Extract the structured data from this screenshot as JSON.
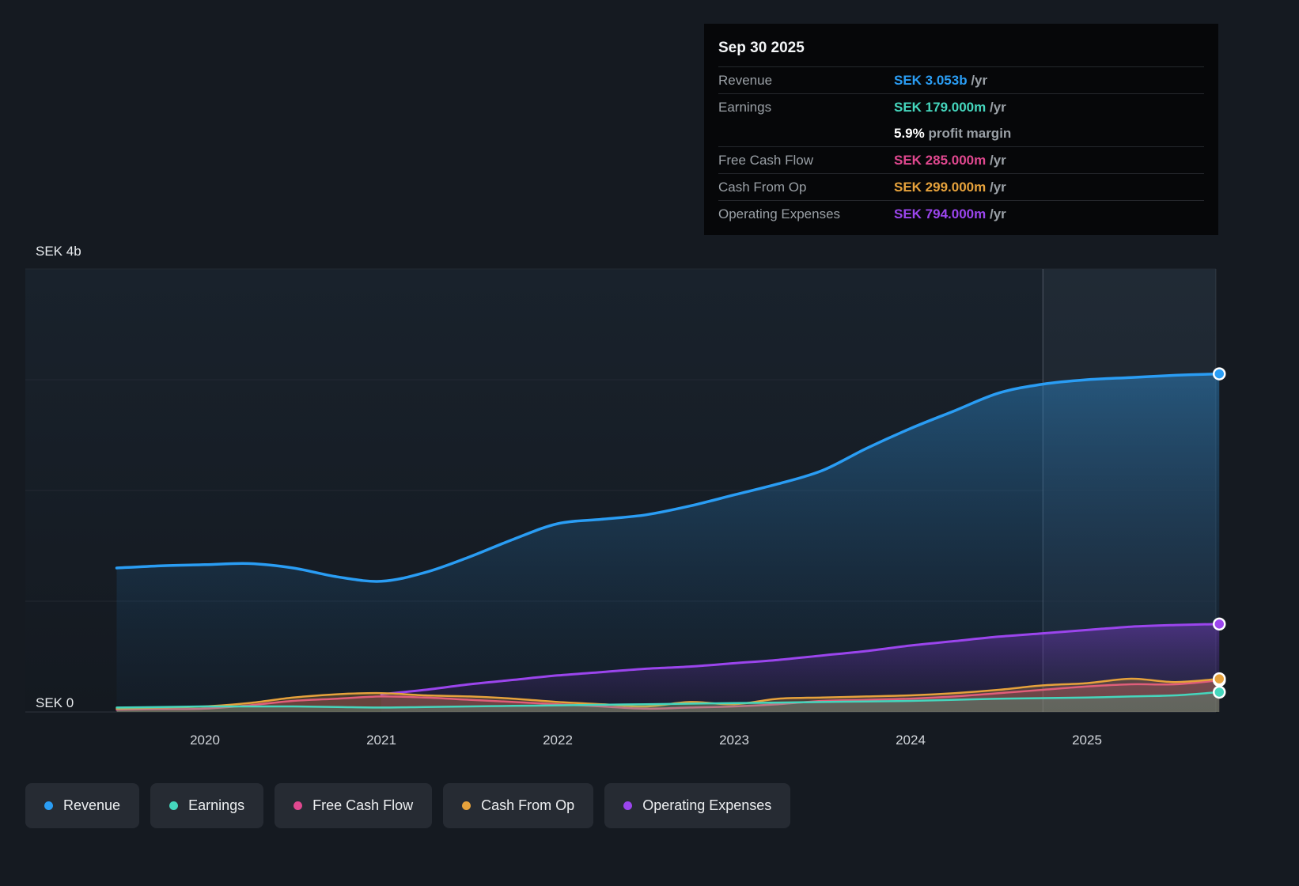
{
  "tooltip": {
    "date": "Sep 30 2025",
    "rows": [
      {
        "label": "Revenue",
        "value": "SEK 3.053b",
        "suffix": "/yr",
        "color": "#2a9df4"
      },
      {
        "label": "Earnings",
        "value": "SEK 179.000m",
        "suffix": "/yr",
        "color": "#45d6bd",
        "sub_value": "5.9%",
        "sub_text": "profit margin"
      },
      {
        "label": "Free Cash Flow",
        "value": "SEK 285.000m",
        "suffix": "/yr",
        "color": "#e0488f"
      },
      {
        "label": "Cash From Op",
        "value": "SEK 299.000m",
        "suffix": "/yr",
        "color": "#e6a23c"
      },
      {
        "label": "Operating Expenses",
        "value": "SEK 794.000m",
        "suffix": "/yr",
        "color": "#9b45ed"
      }
    ]
  },
  "axis": {
    "y_top": "SEK 4b",
    "y_bottom": "SEK 0"
  },
  "legend": [
    {
      "label": "Revenue",
      "color": "#2a9df4"
    },
    {
      "label": "Earnings",
      "color": "#45d6bd"
    },
    {
      "label": "Free Cash Flow",
      "color": "#e0488f"
    },
    {
      "label": "Cash From Op",
      "color": "#e6a23c"
    },
    {
      "label": "Operating Expenses",
      "color": "#9b45ed"
    }
  ],
  "chart_data": {
    "type": "line",
    "title": "Company financials over time (SEK billions)",
    "y_axis": {
      "min": 0,
      "max": 4,
      "unit": "SEK billions",
      "top_label": "SEK 4b",
      "bottom_label": "SEK 0"
    },
    "x_ticks": [
      "2020",
      "2021",
      "2022",
      "2023",
      "2024",
      "2025"
    ],
    "highlight_band_start": 2024.75,
    "x": [
      2019.5,
      2019.75,
      2020,
      2020.25,
      2020.5,
      2020.75,
      2021,
      2021.25,
      2021.5,
      2021.75,
      2022,
      2022.25,
      2022.5,
      2022.75,
      2023,
      2023.25,
      2023.5,
      2023.75,
      2024,
      2024.25,
      2024.5,
      2024.75,
      2025,
      2025.25,
      2025.5,
      2025.75
    ],
    "series": [
      {
        "name": "Revenue",
        "color": "#2a9df4",
        "width": 3.5,
        "fill_top": "rgba(47,143,214,0.45)",
        "fill_bottom": "rgba(21,58,92,0.10)",
        "values": [
          1.3,
          1.32,
          1.33,
          1.34,
          1.3,
          1.22,
          1.18,
          1.26,
          1.4,
          1.56,
          1.7,
          1.74,
          1.78,
          1.86,
          1.96,
          2.06,
          2.18,
          2.38,
          2.56,
          2.72,
          2.88,
          2.96,
          3.0,
          3.02,
          3.04,
          3.053
        ]
      },
      {
        "name": "Operating Expenses",
        "color": "#9b45ed",
        "width": 3,
        "fill_top": "rgba(140,60,224,0.40)",
        "fill_bottom": "rgba(80,35,130,0.10)",
        "values": [
          null,
          null,
          null,
          null,
          null,
          null,
          0.16,
          0.2,
          0.25,
          0.29,
          0.33,
          0.36,
          0.39,
          0.41,
          0.44,
          0.47,
          0.51,
          0.55,
          0.6,
          0.64,
          0.68,
          0.71,
          0.74,
          0.77,
          0.785,
          0.794
        ]
      },
      {
        "name": "Free Cash Flow",
        "color": "#e0488f",
        "width": 2.5,
        "fill": "rgba(220,70,140,0.22)",
        "values": [
          0.02,
          0.025,
          0.03,
          0.06,
          0.1,
          0.12,
          0.14,
          0.13,
          0.11,
          0.09,
          0.07,
          0.05,
          0.03,
          0.04,
          0.05,
          0.07,
          0.1,
          0.11,
          0.12,
          0.14,
          0.17,
          0.2,
          0.23,
          0.25,
          0.25,
          0.285
        ]
      },
      {
        "name": "Cash From Op",
        "color": "#e6a23c",
        "width": 2.5,
        "fill": "rgba(225,160,60,0.25)",
        "values": [
          0.03,
          0.04,
          0.05,
          0.08,
          0.13,
          0.16,
          0.17,
          0.15,
          0.14,
          0.12,
          0.09,
          0.07,
          0.05,
          0.09,
          0.07,
          0.12,
          0.13,
          0.14,
          0.15,
          0.17,
          0.2,
          0.24,
          0.26,
          0.3,
          0.27,
          0.299
        ]
      },
      {
        "name": "Earnings",
        "color": "#45d6bd",
        "width": 2.5,
        "fill": "rgba(60,205,175,0.22)",
        "values": [
          0.04,
          0.045,
          0.05,
          0.05,
          0.05,
          0.045,
          0.04,
          0.045,
          0.05,
          0.055,
          0.06,
          0.065,
          0.07,
          0.075,
          0.08,
          0.085,
          0.09,
          0.095,
          0.1,
          0.11,
          0.12,
          0.125,
          0.13,
          0.14,
          0.15,
          0.179
        ]
      }
    ]
  }
}
